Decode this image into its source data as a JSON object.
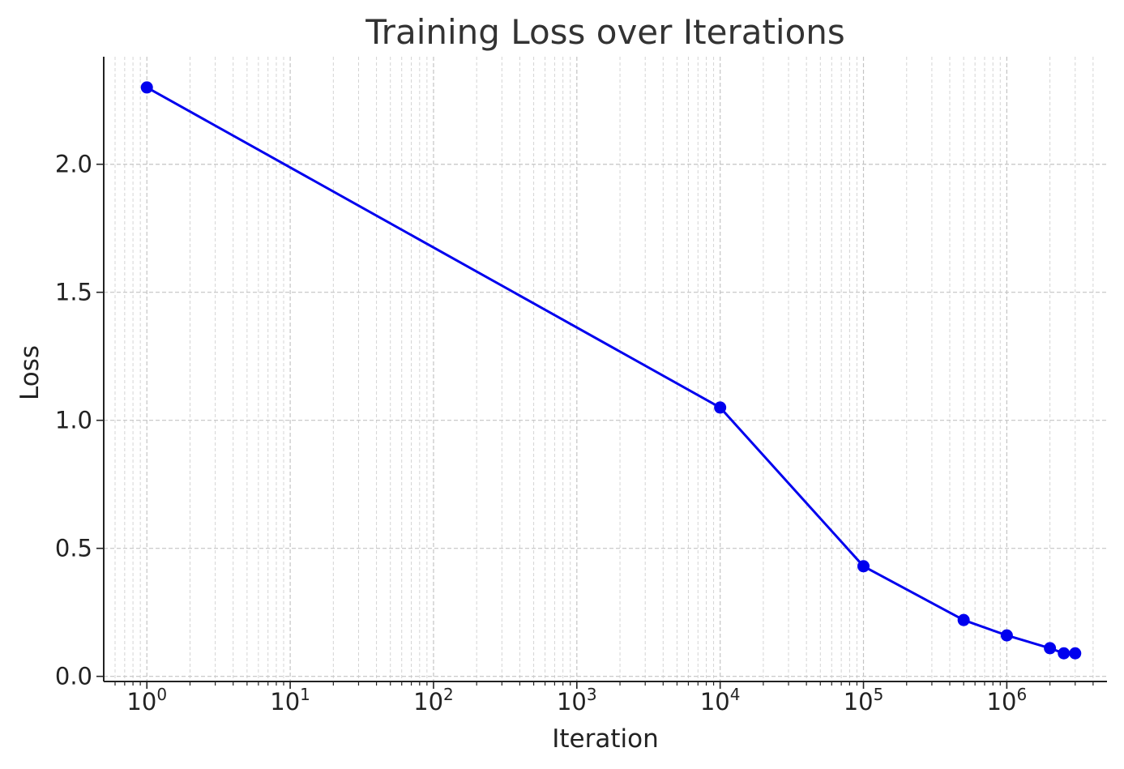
{
  "chart_data": {
    "type": "line",
    "title": "Training Loss over Iterations",
    "xlabel": "Iteration",
    "ylabel": "Loss",
    "x_scale": "log",
    "xlim": [
      0.5,
      5000000
    ],
    "ylim": [
      -0.02,
      2.42
    ],
    "x_ticks": [
      {
        "value": 1,
        "base": "10",
        "exp": "0"
      },
      {
        "value": 10,
        "base": "10",
        "exp": "1"
      },
      {
        "value": 100,
        "base": "10",
        "exp": "2"
      },
      {
        "value": 1000,
        "base": "10",
        "exp": "3"
      },
      {
        "value": 10000,
        "base": "10",
        "exp": "4"
      },
      {
        "value": 100000,
        "base": "10",
        "exp": "5"
      },
      {
        "value": 1000000,
        "base": "10",
        "exp": "6"
      }
    ],
    "y_ticks": [
      {
        "value": 0.0,
        "label": "0.0"
      },
      {
        "value": 0.5,
        "label": "0.5"
      },
      {
        "value": 1.0,
        "label": "1.0"
      },
      {
        "value": 1.5,
        "label": "1.5"
      },
      {
        "value": 2.0,
        "label": "2.0"
      }
    ],
    "grid": true,
    "series": [
      {
        "color": "#0000ee",
        "marker": "circle",
        "x": [
          1,
          10000,
          100000,
          500000,
          1000000,
          2000000,
          2500000,
          3000000
        ],
        "y": [
          2.3,
          1.05,
          0.43,
          0.22,
          0.16,
          0.11,
          0.09,
          0.09
        ]
      }
    ]
  }
}
